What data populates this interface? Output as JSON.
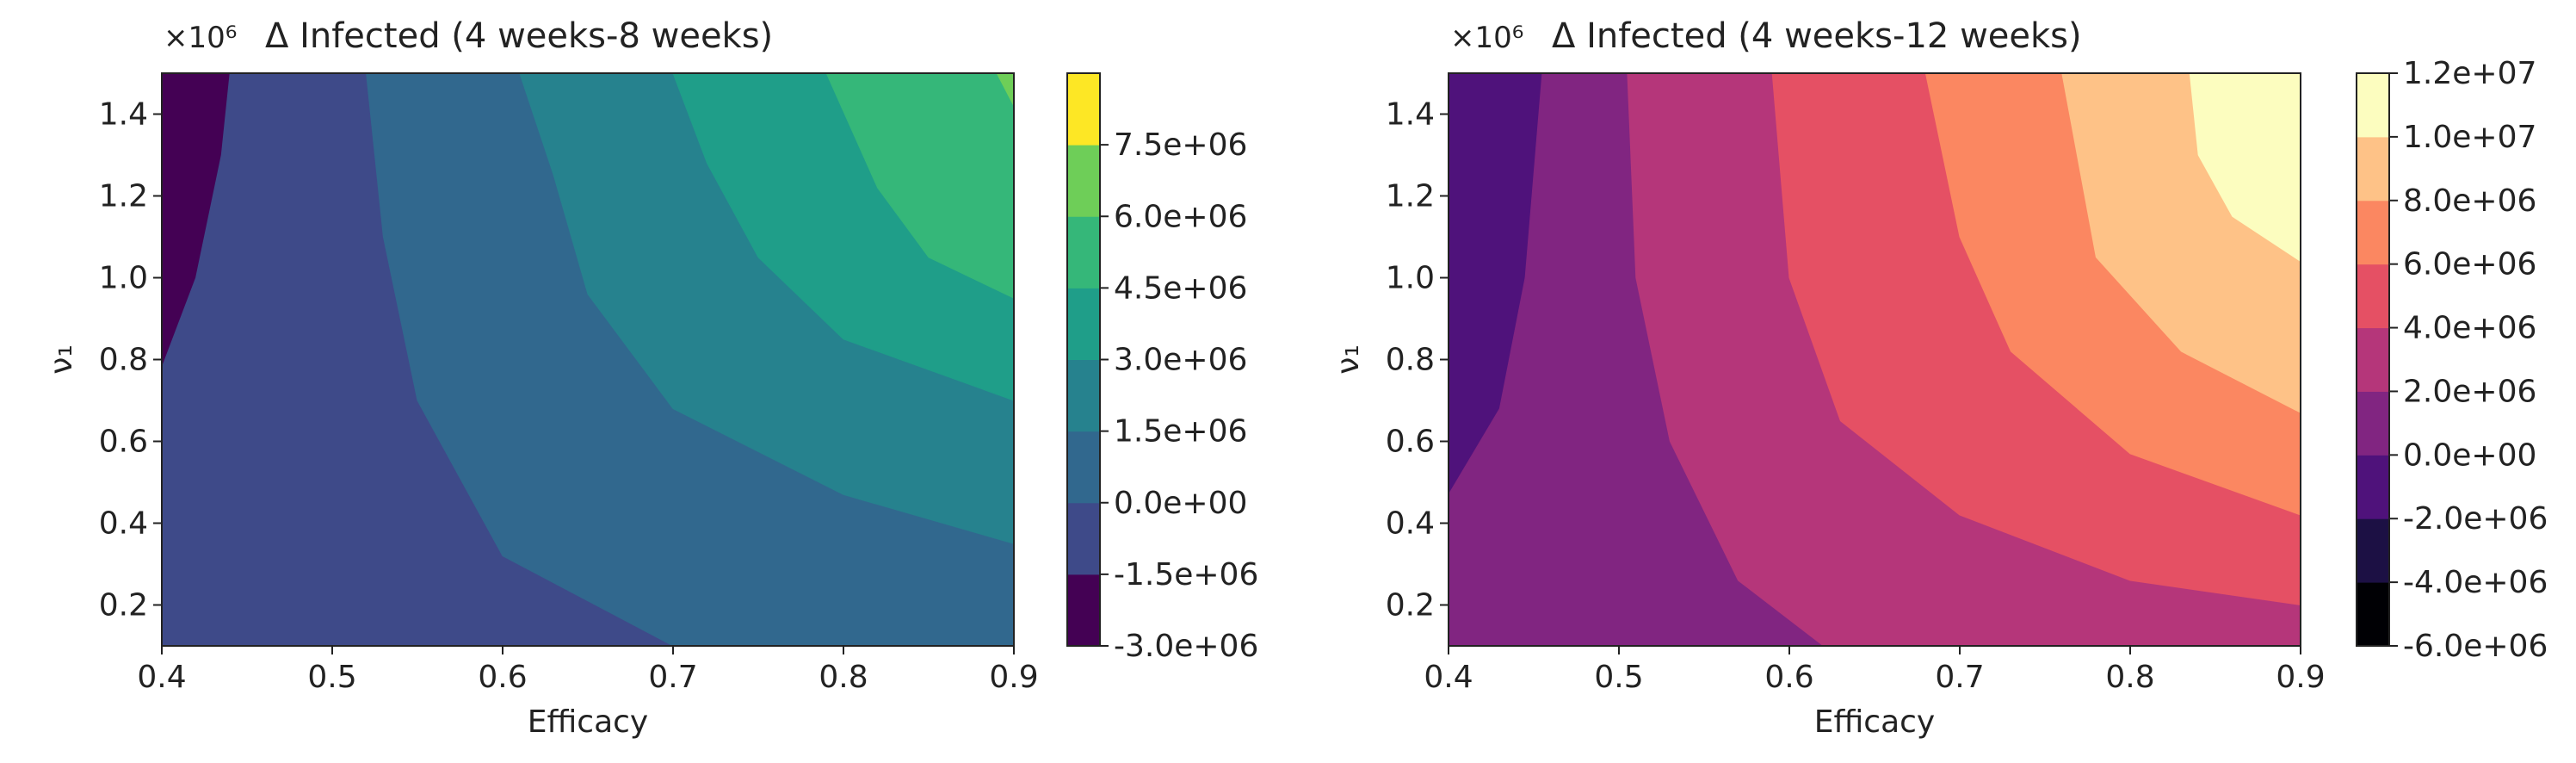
{
  "chart_data": [
    {
      "type": "contour",
      "title": "Δ Infected (4 weeks-8 weeks)",
      "multiplier": "×10⁶",
      "xlabel": "Efficacy",
      "ylabel": "ν₁",
      "xlim": [
        0.4,
        0.9
      ],
      "ylim": [
        0.1,
        1.5
      ],
      "x_ticks": [
        "0.4",
        "0.5",
        "0.6",
        "0.7",
        "0.8",
        "0.9"
      ],
      "y_ticks": [
        "0.2",
        "0.4",
        "0.6",
        "0.8",
        "1.0",
        "1.2",
        "1.4"
      ],
      "colormap": "viridis",
      "levels": [
        -3000000,
        -1500000,
        0,
        1500000,
        3000000,
        4500000,
        6000000,
        7500000
      ],
      "colorbar_ticks": [
        "-3.0e+06",
        "-1.5e+06",
        "0.0e+00",
        "1.5e+06",
        "3.0e+06",
        "4.5e+06",
        "6.0e+06",
        "7.5e+06"
      ],
      "level_colors": [
        "#440154",
        "#3e4a89",
        "#31688e",
        "#26828e",
        "#1f9e89",
        "#35b779",
        "#6ece58",
        "#fde725"
      ],
      "contour_lines": [
        {
          "level": -1500000,
          "points": [
            [
              0.4,
              0.78
            ],
            [
              0.42,
              1.0
            ],
            [
              0.435,
              1.3
            ],
            [
              0.44,
              1.5
            ]
          ]
        },
        {
          "level": 0,
          "points": [
            [
              0.7,
              0.1
            ],
            [
              0.6,
              0.32
            ],
            [
              0.55,
              0.7
            ],
            [
              0.53,
              1.1
            ],
            [
              0.52,
              1.5
            ]
          ]
        },
        {
          "level": 1500000,
          "points": [
            [
              0.9,
              0.35
            ],
            [
              0.8,
              0.47
            ],
            [
              0.7,
              0.68
            ],
            [
              0.65,
              0.96
            ],
            [
              0.63,
              1.25
            ],
            [
              0.61,
              1.5
            ]
          ]
        },
        {
          "level": 3000000,
          "points": [
            [
              0.9,
              0.7
            ],
            [
              0.8,
              0.85
            ],
            [
              0.75,
              1.05
            ],
            [
              0.72,
              1.28
            ],
            [
              0.7,
              1.5
            ]
          ]
        },
        {
          "level": 4500000,
          "points": [
            [
              0.9,
              0.95
            ],
            [
              0.85,
              1.05
            ],
            [
              0.82,
              1.22
            ],
            [
              0.79,
              1.5
            ]
          ]
        },
        {
          "level": 6000000,
          "points": [
            [
              0.89,
              1.5
            ],
            [
              0.9,
              1.42
            ]
          ]
        }
      ]
    },
    {
      "type": "contour",
      "title": "Δ Infected (4 weeks-12 weeks)",
      "multiplier": "×10⁶",
      "xlabel": "Efficacy",
      "ylabel": "ν₁",
      "xlim": [
        0.4,
        0.9
      ],
      "ylim": [
        0.1,
        1.5
      ],
      "x_ticks": [
        "0.4",
        "0.5",
        "0.6",
        "0.7",
        "0.8",
        "0.9"
      ],
      "y_ticks": [
        "0.2",
        "0.4",
        "0.6",
        "0.8",
        "1.0",
        "1.2",
        "1.4"
      ],
      "colormap": "magma",
      "levels": [
        -6000000,
        -4000000,
        -2000000,
        0,
        2000000,
        4000000,
        6000000,
        8000000,
        10000000,
        12000000
      ],
      "colorbar_ticks": [
        "-6.0e+06",
        "-4.0e+06",
        "-2.0e+06",
        "0.0e+00",
        "2.0e+06",
        "4.0e+06",
        "6.0e+06",
        "8.0e+06",
        "1.0e+07",
        "1.2e+07"
      ],
      "level_colors": [
        "#000004",
        "#1c1044",
        "#4f127b",
        "#812581",
        "#b5367a",
        "#e55064",
        "#fb8761",
        "#fec287",
        "#fcfdbf"
      ],
      "contour_lines": [
        {
          "level": 0,
          "points": [
            [
              0.4,
              0.47
            ],
            [
              0.43,
              0.68
            ],
            [
              0.445,
              1.0
            ],
            [
              0.455,
              1.5
            ]
          ]
        },
        {
          "level": 2000000,
          "points": [
            [
              0.62,
              0.1
            ],
            [
              0.57,
              0.26
            ],
            [
              0.53,
              0.6
            ],
            [
              0.51,
              1.0
            ],
            [
              0.505,
              1.5
            ]
          ]
        },
        {
          "level": 4000000,
          "points": [
            [
              0.9,
              0.2
            ],
            [
              0.8,
              0.26
            ],
            [
              0.7,
              0.42
            ],
            [
              0.63,
              0.65
            ],
            [
              0.6,
              1.0
            ],
            [
              0.59,
              1.5
            ]
          ]
        },
        {
          "level": 6000000,
          "points": [
            [
              0.9,
              0.42
            ],
            [
              0.8,
              0.57
            ],
            [
              0.73,
              0.82
            ],
            [
              0.7,
              1.1
            ],
            [
              0.68,
              1.5
            ]
          ]
        },
        {
          "level": 8000000,
          "points": [
            [
              0.9,
              0.67
            ],
            [
              0.83,
              0.82
            ],
            [
              0.78,
              1.05
            ],
            [
              0.76,
              1.5
            ]
          ]
        },
        {
          "level": 10000000,
          "points": [
            [
              0.9,
              1.04
            ],
            [
              0.86,
              1.15
            ],
            [
              0.84,
              1.3
            ],
            [
              0.835,
              1.5
            ]
          ]
        }
      ]
    }
  ]
}
